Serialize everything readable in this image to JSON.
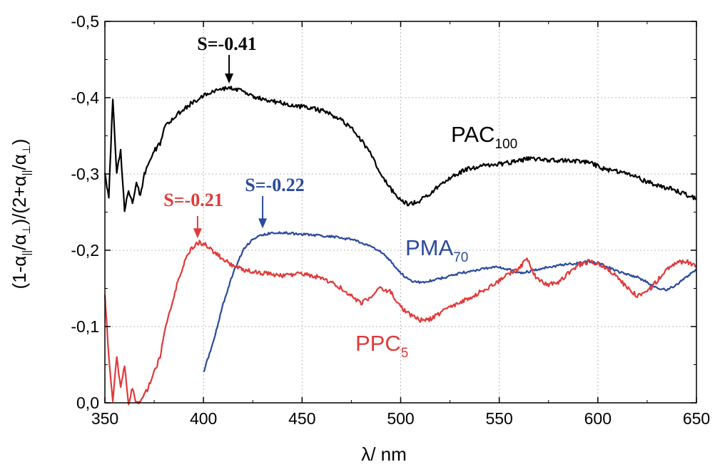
{
  "chart_data": {
    "type": "line",
    "title": "",
    "xlabel": "λ/ nm",
    "ylabel_parts": [
      "(1-α",
      "||",
      "/α",
      "⊥",
      ")/(2+α",
      "||",
      "/α",
      "⊥",
      ")"
    ],
    "xlim": [
      350,
      650
    ],
    "ylim": [
      0.0,
      -0.5
    ],
    "xticks": [
      350,
      400,
      450,
      500,
      550,
      600,
      650
    ],
    "xtick_labels": [
      "350",
      "400",
      "450",
      "500",
      "550",
      "600",
      "650"
    ],
    "yticks": [
      0.0,
      -0.1,
      -0.2,
      -0.3,
      -0.4,
      -0.5
    ],
    "ytick_labels": [
      "0,0",
      "-0,1",
      "-0,2",
      "-0,3",
      "-0,4",
      "-0,5"
    ],
    "grid": true,
    "series": [
      {
        "label_main": "PAC",
        "label_sub": "100",
        "color": "#000000",
        "x": [
          350,
          352,
          354,
          356,
          358,
          360,
          362,
          364,
          366,
          368,
          370,
          372,
          375,
          378,
          380,
          385,
          390,
          395,
          400,
          405,
          410,
          415,
          420,
          425,
          430,
          435,
          440,
          445,
          450,
          455,
          460,
          465,
          470,
          475,
          480,
          485,
          490,
          495,
          500,
          505,
          510,
          515,
          520,
          525,
          530,
          535,
          540,
          545,
          550,
          555,
          560,
          565,
          570,
          575,
          580,
          585,
          590,
          595,
          600,
          605,
          610,
          615,
          620,
          625,
          630,
          635,
          640,
          645,
          650
        ],
        "y": [
          -0.3,
          -0.27,
          -0.4,
          -0.3,
          -0.33,
          -0.25,
          -0.28,
          -0.26,
          -0.29,
          -0.27,
          -0.3,
          -0.31,
          -0.33,
          -0.34,
          -0.36,
          -0.375,
          -0.385,
          -0.395,
          -0.402,
          -0.408,
          -0.412,
          -0.413,
          -0.408,
          -0.402,
          -0.398,
          -0.395,
          -0.393,
          -0.39,
          -0.388,
          -0.386,
          -0.383,
          -0.378,
          -0.37,
          -0.36,
          -0.345,
          -0.325,
          -0.3,
          -0.28,
          -0.265,
          -0.26,
          -0.265,
          -0.275,
          -0.285,
          -0.295,
          -0.302,
          -0.307,
          -0.31,
          -0.312,
          -0.313,
          -0.315,
          -0.317,
          -0.32,
          -0.32,
          -0.318,
          -0.318,
          -0.318,
          -0.317,
          -0.316,
          -0.31,
          -0.305,
          -0.303,
          -0.3,
          -0.295,
          -0.29,
          -0.285,
          -0.282,
          -0.278,
          -0.273,
          -0.268
        ]
      },
      {
        "label_main": "PMA",
        "label_sub": "70",
        "color": "#2b4a9c",
        "x": [
          400,
          405,
          410,
          415,
          420,
          425,
          430,
          435,
          440,
          445,
          450,
          455,
          460,
          465,
          470,
          475,
          480,
          485,
          490,
          495,
          500,
          505,
          510,
          515,
          520,
          525,
          530,
          535,
          540,
          545,
          550,
          555,
          560,
          565,
          570,
          575,
          580,
          585,
          590,
          595,
          600,
          605,
          610,
          615,
          620,
          625,
          630,
          635,
          640,
          645,
          650
        ],
        "y": [
          -0.04,
          -0.08,
          -0.13,
          -0.17,
          -0.2,
          -0.215,
          -0.22,
          -0.223,
          -0.223,
          -0.222,
          -0.221,
          -0.22,
          -0.219,
          -0.218,
          -0.216,
          -0.214,
          -0.21,
          -0.205,
          -0.198,
          -0.185,
          -0.17,
          -0.16,
          -0.158,
          -0.16,
          -0.163,
          -0.166,
          -0.17,
          -0.172,
          -0.175,
          -0.177,
          -0.178,
          -0.175,
          -0.17,
          -0.172,
          -0.175,
          -0.178,
          -0.18,
          -0.182,
          -0.183,
          -0.185,
          -0.183,
          -0.178,
          -0.172,
          -0.168,
          -0.165,
          -0.158,
          -0.15,
          -0.148,
          -0.155,
          -0.165,
          -0.175
        ]
      },
      {
        "label_main": "PPC",
        "label_sub": "5",
        "color": "#e03a3a",
        "x": [
          350,
          352,
          354,
          356,
          358,
          360,
          362,
          364,
          366,
          368,
          370,
          372,
          375,
          378,
          380,
          383,
          386,
          389,
          392,
          395,
          398,
          401,
          405,
          410,
          415,
          420,
          425,
          430,
          435,
          440,
          445,
          450,
          455,
          460,
          465,
          470,
          475,
          480,
          485,
          490,
          495,
          500,
          505,
          510,
          515,
          520,
          525,
          530,
          535,
          540,
          545,
          550,
          555,
          560,
          564,
          567,
          570,
          575,
          580,
          585,
          590,
          595,
          600,
          605,
          610,
          615,
          620,
          625,
          630,
          635,
          640,
          645,
          650
        ],
        "y": [
          -0.14,
          -0.06,
          0.0,
          -0.06,
          -0.02,
          -0.05,
          0.0,
          -0.02,
          0.0,
          0.0,
          -0.01,
          -0.02,
          -0.04,
          -0.06,
          -0.09,
          -0.12,
          -0.15,
          -0.175,
          -0.195,
          -0.205,
          -0.21,
          -0.207,
          -0.198,
          -0.188,
          -0.18,
          -0.175,
          -0.172,
          -0.17,
          -0.168,
          -0.167,
          -0.168,
          -0.17,
          -0.167,
          -0.163,
          -0.158,
          -0.15,
          -0.14,
          -0.13,
          -0.14,
          -0.15,
          -0.145,
          -0.125,
          -0.115,
          -0.108,
          -0.11,
          -0.118,
          -0.125,
          -0.132,
          -0.138,
          -0.145,
          -0.152,
          -0.16,
          -0.17,
          -0.175,
          -0.19,
          -0.17,
          -0.16,
          -0.155,
          -0.158,
          -0.17,
          -0.18,
          -0.185,
          -0.183,
          -0.175,
          -0.165,
          -0.15,
          -0.14,
          -0.145,
          -0.16,
          -0.175,
          -0.185,
          -0.185,
          -0.18
        ]
      }
    ],
    "annotations": [
      {
        "text": "S=-0.41",
        "color": "#000000",
        "x": 413,
        "y": -0.413
      },
      {
        "text": "S=-0.22",
        "color": "#2b4a9c",
        "x": 430,
        "y": -0.223
      },
      {
        "text": "S=-0.21",
        "color": "#e03a3a",
        "x": 397,
        "y": -0.21
      }
    ]
  }
}
